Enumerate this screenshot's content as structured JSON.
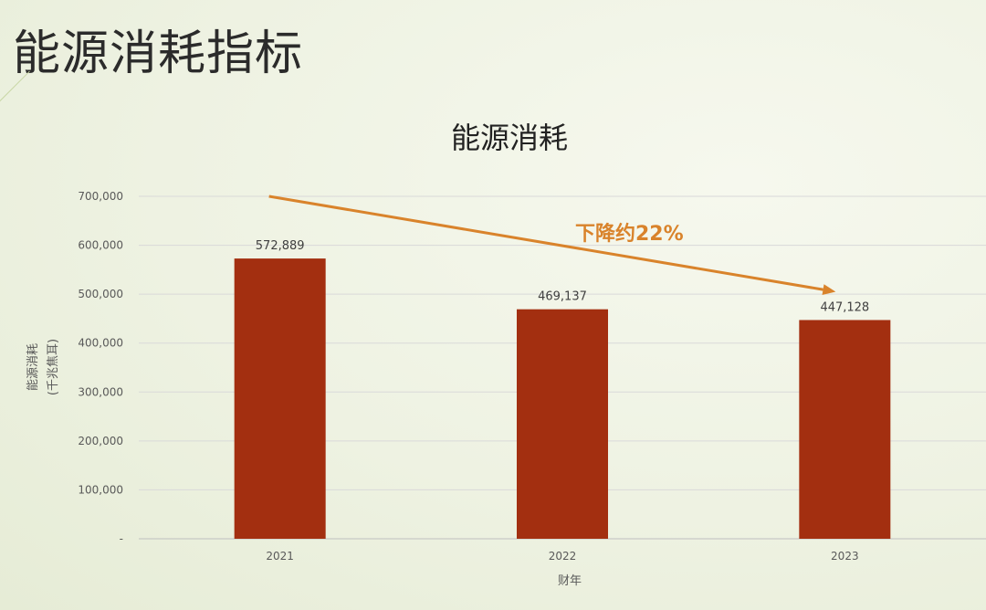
{
  "slide": {
    "title": "能源消耗指标"
  },
  "chart_data": {
    "type": "bar",
    "title": "能源消耗",
    "xlabel": "财年",
    "ylabel": "能源消耗",
    "ylabel_unit": "(千兆焦耳)",
    "categories": [
      "2021",
      "2022",
      "2023"
    ],
    "values": [
      572889,
      469137,
      447128
    ],
    "value_labels": [
      "572,889",
      "469,137",
      "447,128"
    ],
    "ylim": [
      0,
      700000
    ],
    "yticks": [
      0,
      100000,
      200000,
      300000,
      400000,
      500000,
      600000,
      700000
    ],
    "ytick_labels": [
      "-",
      "100,000",
      "200,000",
      "300,000",
      "400,000",
      "500,000",
      "600,000",
      "700,000"
    ],
    "grid": true,
    "bar_color": "#a32f10",
    "annotation": {
      "text": "下降约22%",
      "color": "#d9832b"
    }
  }
}
